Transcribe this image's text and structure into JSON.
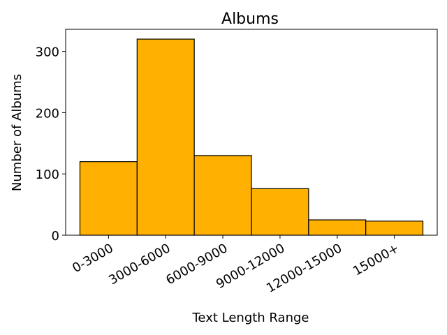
{
  "chart_data": {
    "type": "bar",
    "title": "Albums",
    "x_label": "Text Length Range",
    "y_label": "Number of Albums",
    "categories": [
      "0-3000",
      "3000-6000",
      "6000-9000",
      "9000-12000",
      "12000-15000",
      "15000+"
    ],
    "values": [
      120,
      320,
      130,
      76,
      25,
      23
    ],
    "color": "#ffb000",
    "edgecolor": "#000000",
    "ylim": [
      0,
      336
    ],
    "yticks": [
      0,
      100,
      200,
      300
    ]
  }
}
